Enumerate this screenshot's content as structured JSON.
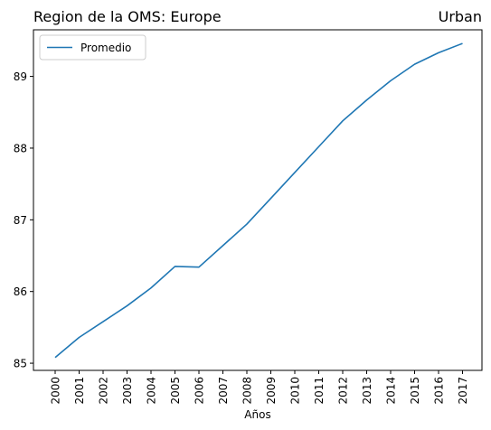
{
  "chart_data": {
    "type": "line",
    "title_left": "Region de la OMS: Europe",
    "title_right": "Urban",
    "xlabel": "Años",
    "ylabel": "",
    "x": [
      "2000",
      "2001",
      "2002",
      "2003",
      "2004",
      "2005",
      "2006",
      "2007",
      "2008",
      "2009",
      "2010",
      "2011",
      "2012",
      "2013",
      "2014",
      "2015",
      "2016",
      "2017"
    ],
    "series": [
      {
        "name": "Promedio",
        "color": "#1f77b4",
        "values": [
          85.08,
          85.36,
          85.58,
          85.8,
          86.05,
          86.35,
          86.34,
          86.64,
          86.94,
          87.3,
          87.66,
          88.02,
          88.38,
          88.67,
          88.94,
          89.17,
          89.33,
          89.46
        ]
      }
    ],
    "yticks": [
      85,
      86,
      87,
      88,
      89
    ],
    "ylim": [
      84.9,
      89.65
    ],
    "legend_position": "top-left",
    "grid": false
  }
}
